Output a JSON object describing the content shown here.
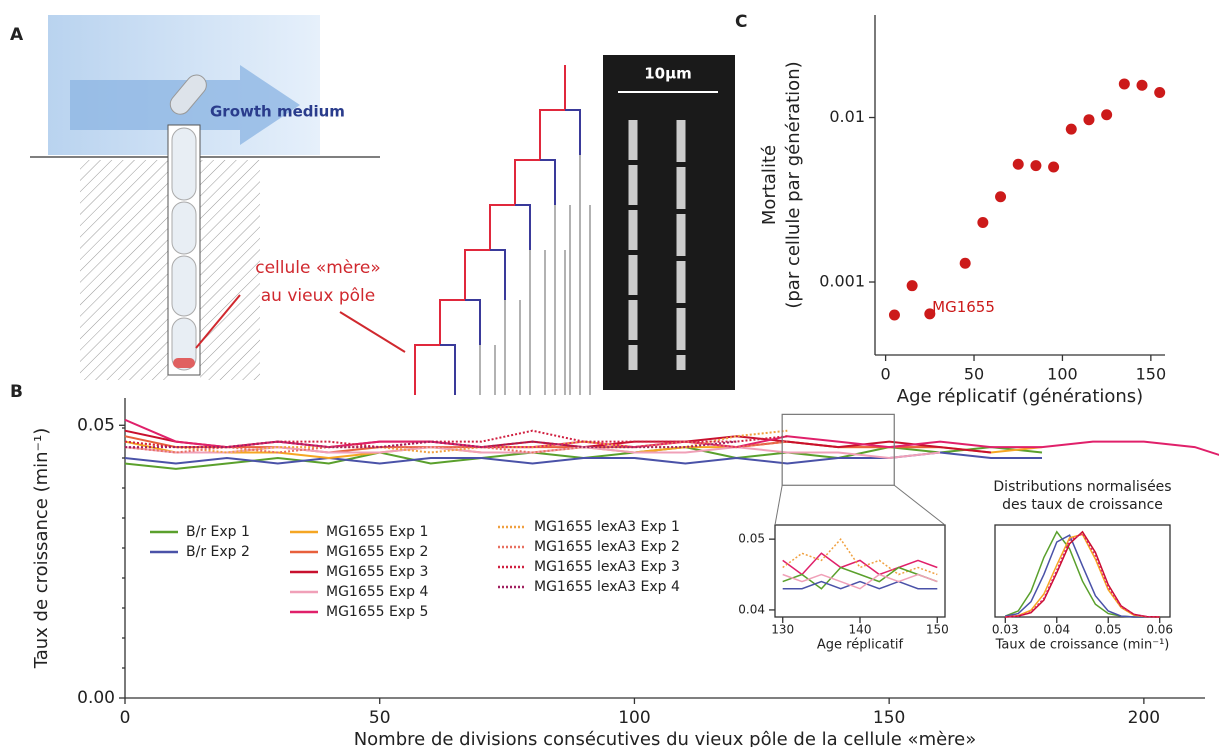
{
  "panel_a": {
    "label": "A",
    "growth_medium": "Growth medium",
    "annotation": [
      "cellule «mère»",
      "au vieux pôle"
    ],
    "scale_bar": "10µm"
  },
  "chart_data": [
    {
      "type": "line",
      "panel_label": "B",
      "ylabel": [
        "Taux de croissance (min⁻¹)"
      ],
      "xlabel": "Nombre de divisions consécutives du vieux pôle de la cellule «mère»",
      "x": [
        0,
        10,
        20,
        30,
        40,
        50,
        60,
        70,
        80,
        90,
        100,
        110,
        120,
        130,
        140,
        150,
        160,
        170,
        180,
        190,
        200,
        210,
        220
      ],
      "xlim": [
        0,
        212
      ],
      "xticks": [
        0,
        50,
        100,
        150,
        200
      ],
      "ylim": [
        0,
        0.055
      ],
      "yticks": [
        {
          "value": 0,
          "label": "0.00"
        },
        {
          "value": 0.05,
          "label": "0.05"
        }
      ],
      "series": [
        {
          "name": "B/r Exp 1",
          "color": "#5aa02c",
          "values": [
            0.043,
            0.042,
            0.043,
            0.044,
            0.043,
            0.045,
            0.043,
            0.044,
            0.045,
            0.044,
            0.045,
            0.046,
            0.044,
            0.045,
            0.044,
            0.046,
            0.045,
            0.046,
            0.045,
            null,
            null,
            null,
            null
          ]
        },
        {
          "name": "B/r Exp 2",
          "color": "#4a52a8",
          "values": [
            0.044,
            0.043,
            0.044,
            0.043,
            0.044,
            0.043,
            0.044,
            0.044,
            0.043,
            0.044,
            0.044,
            0.043,
            0.044,
            0.043,
            0.044,
            0.044,
            0.045,
            0.044,
            0.044,
            null,
            null,
            null,
            null
          ]
        },
        {
          "name": "MG1655 Exp 1",
          "color": "#f5a623",
          "values": [
            0.047,
            0.045,
            0.045,
            0.045,
            0.044,
            0.045,
            0.046,
            0.045,
            0.045,
            0.046,
            0.045,
            0.046,
            0.046,
            0.047,
            0.046,
            0.046,
            0.046,
            0.045,
            0.046,
            null,
            null,
            null,
            null
          ]
        },
        {
          "name": "MG1655 Exp 2",
          "color": "#e8603c",
          "values": [
            0.048,
            0.046,
            0.046,
            0.046,
            0.045,
            0.046,
            0.046,
            0.046,
            0.046,
            0.046,
            0.046,
            0.047,
            0.046,
            0.047,
            0.046,
            0.046,
            0.046,
            null,
            null,
            null,
            null,
            null,
            null
          ]
        },
        {
          "name": "MG1655 Exp 3",
          "color": "#c8102e",
          "values": [
            0.049,
            0.047,
            0.046,
            0.047,
            0.046,
            0.047,
            0.047,
            0.046,
            0.047,
            0.046,
            0.047,
            0.047,
            0.048,
            0.047,
            0.046,
            0.047,
            0.046,
            0.045,
            null,
            null,
            null,
            null,
            null
          ]
        },
        {
          "name": "MG1655 Exp 4",
          "color": "#f0a0b8",
          "values": [
            0.046,
            0.045,
            0.045,
            0.046,
            0.045,
            0.045,
            0.046,
            0.045,
            0.045,
            0.046,
            0.045,
            0.045,
            0.046,
            0.045,
            0.045,
            0.044,
            0.045,
            null,
            null,
            null,
            null,
            null,
            null
          ]
        },
        {
          "name": "MG1655 Exp 5",
          "color": "#e0206a",
          "values": [
            0.051,
            0.047,
            0.046,
            0.047,
            0.046,
            0.047,
            0.047,
            0.046,
            0.046,
            0.047,
            0.046,
            0.047,
            0.046,
            0.048,
            0.047,
            0.046,
            0.047,
            0.046,
            0.046,
            0.047,
            0.047,
            0.046,
            0.043
          ]
        },
        {
          "name": "MG1655 lexA3 Exp 1",
          "color": "#f0a040",
          "dashed": true,
          "values": [
            0.047,
            0.046,
            0.045,
            0.046,
            0.046,
            0.046,
            0.045,
            0.046,
            0.046,
            0.047,
            0.046,
            0.046,
            0.048,
            0.049,
            null,
            null,
            null,
            null,
            null,
            null,
            null,
            null,
            null
          ]
        },
        {
          "name": "MG1655 lexA3 Exp 2",
          "color": "#e87060",
          "dashed": true,
          "values": [
            0.046,
            0.045,
            0.046,
            0.045,
            0.046,
            0.046,
            0.046,
            0.046,
            0.045,
            0.046,
            0.046,
            0.047,
            0.046,
            0.047,
            null,
            null,
            null,
            null,
            null,
            null,
            null,
            null,
            null
          ]
        },
        {
          "name": "MG1655 lexA3 Exp 3",
          "color": "#d02040",
          "dashed": true,
          "values": [
            0.047,
            0.046,
            0.046,
            0.047,
            0.047,
            0.046,
            0.047,
            0.047,
            0.049,
            0.047,
            0.047,
            0.047,
            0.047,
            0.048,
            null,
            null,
            null,
            null,
            null,
            null,
            null,
            null,
            null
          ]
        },
        {
          "name": "MG1655 lexA3 Exp 4",
          "color": "#a02060",
          "dashed": true,
          "values": [
            0.046,
            0.046,
            0.046,
            0.047,
            0.046,
            0.046,
            0.047,
            0.046,
            0.047,
            0.046,
            0.046,
            0.046,
            0.047,
            null,
            null,
            null,
            null,
            null,
            null,
            null,
            null,
            null,
            null
          ]
        }
      ]
    },
    {
      "type": "scatter",
      "panel_label": "C",
      "log_y": true,
      "ylabel": [
        "Mortalité",
        "(par cellule par génération)"
      ],
      "xlabel": "Age réplicatif (générations)",
      "annotation": "MG1655",
      "color": "#cc1a1a",
      "x": [
        5,
        15,
        25,
        45,
        55,
        65,
        75,
        85,
        95,
        105,
        115,
        125,
        135,
        145,
        155
      ],
      "values": [
        0.00063,
        0.00095,
        0.00064,
        0.0013,
        0.0023,
        0.0033,
        0.0052,
        0.0051,
        0.005,
        0.0085,
        0.0097,
        0.0104,
        0.016,
        0.0157,
        0.0142
      ],
      "xlim": [
        -6,
        158
      ],
      "xticks": [
        0,
        50,
        100,
        150
      ],
      "ylim": [
        0.00036,
        0.042
      ],
      "yticks": [
        0.001,
        0.01
      ]
    },
    {
      "type": "line",
      "frame": true,
      "xlabel": "Age réplicatif",
      "x": [
        130,
        132.5,
        135,
        137.5,
        140,
        142.5,
        145,
        147.5,
        150
      ],
      "xlim": [
        129,
        151
      ],
      "xticks": [
        130,
        140,
        150
      ],
      "ylim": [
        0.039,
        0.052
      ],
      "yticks": [
        0.04,
        0.05
      ],
      "series": [
        {
          "color": "#e0206a",
          "values": [
            0.047,
            0.045,
            0.048,
            0.046,
            0.047,
            0.045,
            0.046,
            0.047,
            0.046
          ]
        },
        {
          "color": "#f0a040",
          "dashed": true,
          "values": [
            0.046,
            0.048,
            0.047,
            0.05,
            0.046,
            0.047,
            0.045,
            0.046,
            0.045
          ]
        },
        {
          "color": "#5aa02c",
          "values": [
            0.044,
            0.045,
            0.043,
            0.046,
            0.045,
            0.044,
            0.046,
            0.045,
            0.044
          ]
        },
        {
          "color": "#4a52a8",
          "values": [
            0.043,
            0.043,
            0.044,
            0.043,
            0.044,
            0.043,
            0.044,
            0.043,
            0.043
          ]
        },
        {
          "color": "#f0a0b8",
          "values": [
            0.045,
            0.044,
            0.045,
            0.044,
            0.043,
            0.045,
            0.044,
            0.045,
            0.044
          ]
        }
      ]
    },
    {
      "type": "line",
      "frame": true,
      "title": [
        "Distributions normalisées",
        "des taux de croissance"
      ],
      "xlabel": "Taux de croissance (min⁻¹)",
      "x": [
        0.03,
        0.0325,
        0.035,
        0.0375,
        0.04,
        0.0425,
        0.045,
        0.0475,
        0.05,
        0.0525,
        0.055,
        0.0575,
        0.06
      ],
      "xlim": [
        0.028,
        0.062
      ],
      "xticks": [
        0.03,
        0.04,
        0.05,
        0.06
      ],
      "ylim": [
        0,
        1.08
      ],
      "series": [
        {
          "color": "#5aa02c",
          "values": [
            0.01,
            0.07,
            0.3,
            0.7,
            1.0,
            0.8,
            0.42,
            0.15,
            0.04,
            0.01,
            0,
            0,
            0
          ]
        },
        {
          "color": "#4a52a8",
          "values": [
            0.01,
            0.04,
            0.18,
            0.5,
            0.88,
            0.96,
            0.6,
            0.25,
            0.07,
            0.01,
            0,
            0,
            0
          ]
        },
        {
          "color": "#f5a623",
          "values": [
            0,
            0.016,
            0.08,
            0.27,
            0.61,
            0.93,
            0.97,
            0.68,
            0.32,
            0.11,
            0.02,
            0.003,
            0
          ]
        },
        {
          "color": "#c8102e",
          "values": [
            0,
            0.01,
            0.05,
            0.2,
            0.52,
            0.86,
            1.0,
            0.76,
            0.38,
            0.13,
            0.03,
            0.005,
            0
          ]
        },
        {
          "color": "#e0206a",
          "dashed": true,
          "values": [
            0,
            0.01,
            0.06,
            0.22,
            0.55,
            0.9,
            0.98,
            0.72,
            0.35,
            0.12,
            0.03,
            0.004,
            0
          ]
        }
      ]
    }
  ]
}
